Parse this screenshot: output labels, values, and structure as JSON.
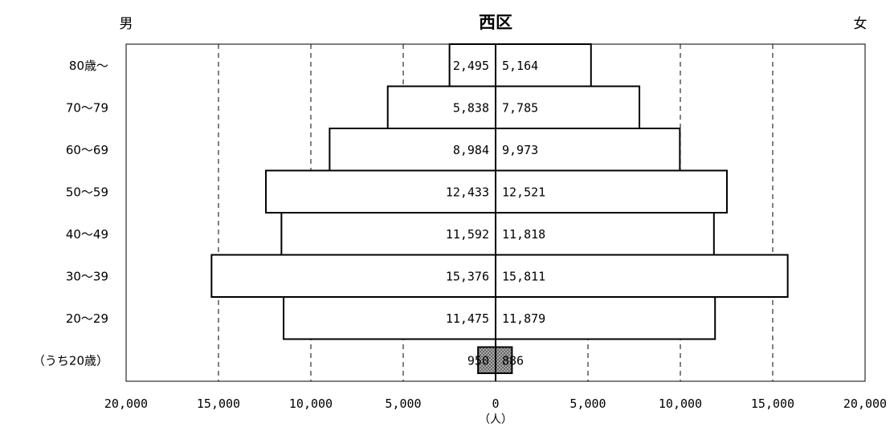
{
  "chart_data": {
    "type": "bar",
    "orientation": "population-pyramid",
    "title": "西区",
    "left_label": "男",
    "right_label": "女",
    "unit_label": "（人）",
    "categories": [
      "80歳～",
      "70～79",
      "60～69",
      "50～59",
      "40～49",
      "30～39",
      "20～29",
      "（うち20歳）"
    ],
    "series": [
      {
        "name": "男",
        "values": [
          2495,
          5838,
          8984,
          12433,
          11592,
          15376,
          11475,
          950
        ],
        "labels": [
          "2,495",
          "5,838",
          "8,984",
          "12,433",
          "11,592",
          "15,376",
          "11,475",
          "950"
        ]
      },
      {
        "name": "女",
        "values": [
          5164,
          7785,
          9973,
          12521,
          11818,
          15811,
          11879,
          886
        ],
        "labels": [
          "5,164",
          "7,785",
          "9,973",
          "12,521",
          "11,818",
          "15,811",
          "11,879",
          "886"
        ]
      }
    ],
    "xlim": [
      -20000,
      20000
    ],
    "x_ticks": [
      -20000,
      -15000,
      -10000,
      -5000,
      0,
      5000,
      10000,
      15000,
      20000
    ],
    "x_tick_labels": [
      "20,000",
      "15,000",
      "10,000",
      "5,000",
      "0",
      "5,000",
      "10,000",
      "15,000",
      "20,000"
    ],
    "gridlines": "dashed vertical",
    "colors": {
      "bar_fill": "#ffffff",
      "bar_stroke": "#000000",
      "highlight_fill": "#9a9a9a",
      "highlight_row": "（うち20歳）"
    }
  }
}
